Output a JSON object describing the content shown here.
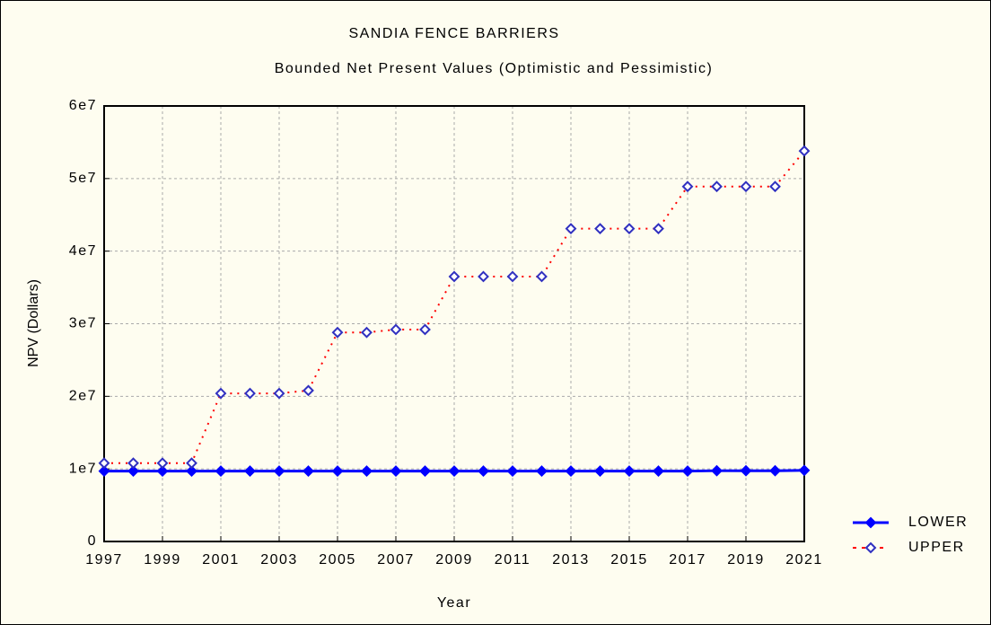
{
  "chart_data": {
    "type": "line",
    "title": "SANDIA FENCE BARRIERS",
    "subtitle": "Bounded Net Present Values (Optimistic and Pessimistic)",
    "x_label": "Year",
    "y_label": "NPV (Dollars)",
    "x": [
      1997,
      1998,
      1999,
      2000,
      2001,
      2002,
      2003,
      2004,
      2005,
      2006,
      2007,
      2008,
      2009,
      2010,
      2011,
      2012,
      2013,
      2014,
      2015,
      2016,
      2017,
      2018,
      2019,
      2020,
      2021
    ],
    "series": [
      {
        "name": "LOWER",
        "color": "#0000ff",
        "marker_color": "#0000ff",
        "line_style": "solid",
        "marker_fill": true,
        "values": [
          9700000,
          9700000,
          9700000,
          9700000,
          9700000,
          9700000,
          9700000,
          9700000,
          9700000,
          9700000,
          9700000,
          9700000,
          9700000,
          9700000,
          9700000,
          9700000,
          9700000,
          9700000,
          9700000,
          9700000,
          9700000,
          9750000,
          9750000,
          9750000,
          9800000
        ]
      },
      {
        "name": "UPPER",
        "color": "#ff0000",
        "marker_color": "#3030c0",
        "line_style": "dotted",
        "marker_fill": false,
        "values": [
          10800000,
          10800000,
          10800000,
          10800000,
          20400000,
          20400000,
          20400000,
          20800000,
          28800000,
          28800000,
          29200000,
          29200000,
          36500000,
          36500000,
          36500000,
          36500000,
          43100000,
          43100000,
          43100000,
          43100000,
          48900000,
          48900000,
          48900000,
          48900000,
          53800000
        ]
      }
    ],
    "xlim": [
      1997,
      2021
    ],
    "xticks": [
      1997,
      1999,
      2001,
      2003,
      2005,
      2007,
      2009,
      2011,
      2013,
      2015,
      2017,
      2019,
      2021
    ],
    "ylim": [
      0,
      60000000
    ],
    "yticks": [
      0,
      {
        "value": 10000000,
        "label": "1e7"
      },
      {
        "value": 20000000,
        "label": "2e7"
      },
      {
        "value": 30000000,
        "label": "3e7"
      },
      {
        "value": 40000000,
        "label": "4e7"
      },
      {
        "value": 50000000,
        "label": "5e7"
      },
      {
        "value": 60000000,
        "label": "6e7"
      }
    ],
    "grid": true
  }
}
